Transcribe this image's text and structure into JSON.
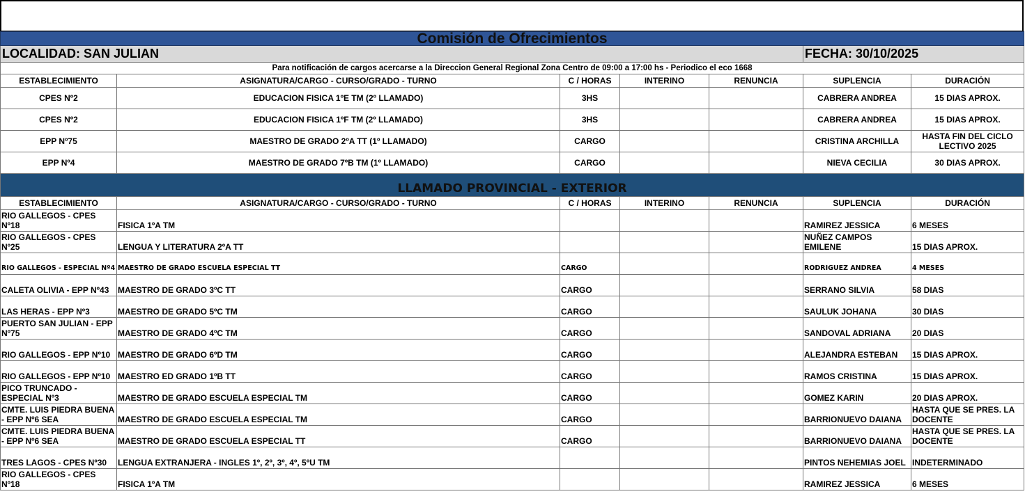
{
  "title": "Comisión de Ofrecimientos",
  "localidad": "LOCALIDAD: SAN JULIAN",
  "fecha": "FECHA: 30/10/2025",
  "note": "Para notificación de cargos acercarse a la Direccion General Regional Zona Centro de 09:00 a 17:00 hs - Periodico el eco 1668",
  "headers": [
    "ESTABLECIMIENTO",
    "ASIGNATURA/CARGO - CURSO/GRADO - TURNO",
    "C / HORAS",
    "INTERINO",
    "RENUNCIA",
    "SUPLENCIA",
    "DURACIÓN"
  ],
  "local_rows": [
    [
      "CPES Nº2",
      "EDUCACION FISICA 1ºE TM (2º LLAMADO)",
      "3HS",
      "",
      "",
      "CABRERA ANDREA",
      "15 DIAS APROX."
    ],
    [
      "CPES Nº2",
      "EDUCACION FISICA 1ºF TM (2º LLAMADO)",
      "3HS",
      "",
      "",
      "CABRERA ANDREA",
      "15 DIAS APROX."
    ],
    [
      "EPP Nº75",
      "MAESTRO DE GRADO 2ºA TT (1º LLAMADO)",
      "CARGO",
      "",
      "",
      "CRISTINA ARCHILLA",
      "HASTA FIN DEL CICLO LECTIVO 2025"
    ],
    [
      "EPP Nº4",
      "MAESTRO DE GRADO 7ºB TM (1º LLAMADO)",
      "CARGO",
      "",
      "",
      "NIEVA CECILIA",
      "30 DIAS APROX."
    ]
  ],
  "section2_title": "LLAMADO PROVINCIAL - EXTERIOR",
  "provincial_rows": [
    [
      "RIO GALLEGOS - CPES Nº18",
      "FISICA 1ºA TM",
      "",
      "",
      "",
      "RAMIREZ JESSICA",
      "6 MESES"
    ],
    [
      "RIO GALLEGOS - CPES Nº25",
      "LENGUA Y LITERATURA 2ºA TT",
      "",
      "",
      "",
      "NUÑEZ CAMPOS EMILENE",
      "15 DIAS APROX."
    ],
    [
      "RIO GALLEGOS - ESPECIAL Nº4",
      "MAESTRO DE GRADO ESCUELA ESPECIAL TT",
      "CARGO",
      "",
      "",
      "RODRIGUEZ ANDREA",
      "4 MESES"
    ],
    [
      "CALETA OLIVIA - EPP Nº43",
      "MAESTRO DE GRADO 3ºC TT",
      "CARGO",
      "",
      "",
      "SERRANO SILVIA",
      "58 DIAS"
    ],
    [
      "LAS HERAS - EPP Nº3",
      "MAESTRO DE GRADO 5ºC TM",
      "CARGO",
      "",
      "",
      "SAULUK JOHANA",
      "30 DIAS"
    ],
    [
      "PUERTO SAN JULIAN - EPP Nº75",
      "MAESTRO DE GRADO 4ºC TM",
      "CARGO",
      "",
      "",
      "SANDOVAL ADRIANA",
      "20 DIAS"
    ],
    [
      "RIO GALLEGOS - EPP Nº10",
      "MAESTRO DE GRADO 6ºD TM",
      "CARGO",
      "",
      "",
      "ALEJANDRA ESTEBAN",
      "15 DIAS APROX."
    ],
    [
      "RIO GALLEGOS - EPP Nº10",
      "MAESTRO ED GRADO 1ºB TT",
      "CARGO",
      "",
      "",
      "RAMOS CRISTINA",
      "15 DIAS APROX."
    ],
    [
      "PICO TRUNCADO - ESPECIAL Nº3",
      "MAESTRO DE GRADO ESCUELA ESPECIAL TM",
      "CARGO",
      "",
      "",
      "GOMEZ KARIN",
      "20 DIAS APROX."
    ],
    [
      "CMTE. LUIS PIEDRA BUENA - EPP Nº6 SEA",
      "MAESTRO DE GRADO ESCUELA ESPECIAL TM",
      "CARGO",
      "",
      "",
      "BARRIONUEVO DAIANA",
      "HASTA QUE SE PRES. LA DOCENTE"
    ],
    [
      "CMTE. LUIS PIEDRA BUENA - EPP Nº6 SEA",
      "MAESTRO DE GRADO ESCUELA ESPECIAL TT",
      "CARGO",
      "",
      "",
      "BARRIONUEVO DAIANA",
      "HASTA QUE SE PRES. LA DOCENTE"
    ],
    [
      "TRES LAGOS - CPES Nº30",
      "LENGUA EXTRANJERA - INGLES 1º, 2º, 3º, 4º, 5ºU TM",
      "",
      "",
      "",
      "PINTOS NEHEMIAS JOEL",
      "INDETERMINADO"
    ],
    [
      "RIO GALLEGOS - CPES Nº18",
      "FISICA 1ºA TM",
      "",
      "",
      "",
      "RAMIREZ JESSICA",
      "6 MESES"
    ]
  ]
}
